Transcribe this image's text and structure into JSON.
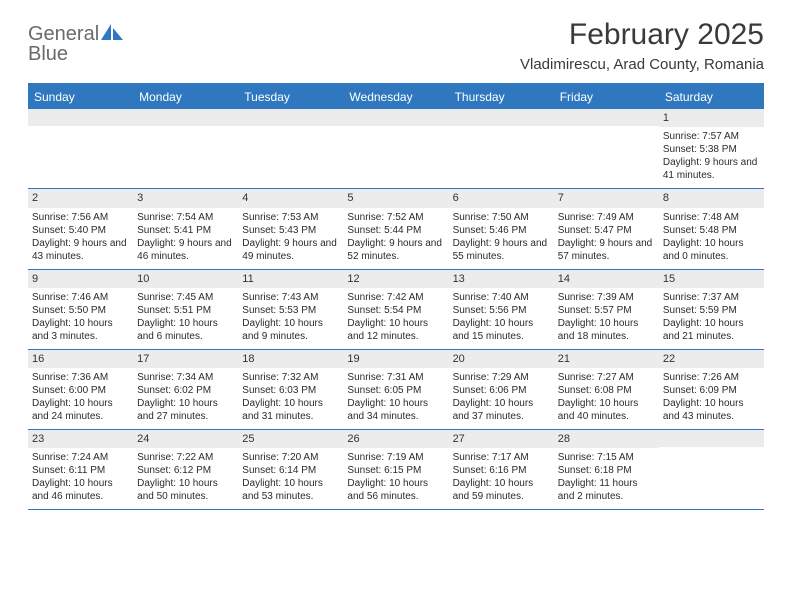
{
  "brand": {
    "line1": "General",
    "line2": "Blue"
  },
  "logo_colors": {
    "text_gray": "#6a6a6a",
    "blue": "#2f78bf"
  },
  "title": "February 2025",
  "location": "Vladimirescu, Arad County, Romania",
  "header_bg": "#2f78bf",
  "header_text_color": "#ffffff",
  "daynum_bg": "#ececec",
  "rule_color": "#2f78bf",
  "day_names": [
    "Sunday",
    "Monday",
    "Tuesday",
    "Wednesday",
    "Thursday",
    "Friday",
    "Saturday"
  ],
  "weeks": [
    [
      {
        "n": "",
        "sunrise": "",
        "sunset": "",
        "daylight": ""
      },
      {
        "n": "",
        "sunrise": "",
        "sunset": "",
        "daylight": ""
      },
      {
        "n": "",
        "sunrise": "",
        "sunset": "",
        "daylight": ""
      },
      {
        "n": "",
        "sunrise": "",
        "sunset": "",
        "daylight": ""
      },
      {
        "n": "",
        "sunrise": "",
        "sunset": "",
        "daylight": ""
      },
      {
        "n": "",
        "sunrise": "",
        "sunset": "",
        "daylight": ""
      },
      {
        "n": "1",
        "sunrise": "Sunrise: 7:57 AM",
        "sunset": "Sunset: 5:38 PM",
        "daylight": "Daylight: 9 hours and 41 minutes."
      }
    ],
    [
      {
        "n": "2",
        "sunrise": "Sunrise: 7:56 AM",
        "sunset": "Sunset: 5:40 PM",
        "daylight": "Daylight: 9 hours and 43 minutes."
      },
      {
        "n": "3",
        "sunrise": "Sunrise: 7:54 AM",
        "sunset": "Sunset: 5:41 PM",
        "daylight": "Daylight: 9 hours and 46 minutes."
      },
      {
        "n": "4",
        "sunrise": "Sunrise: 7:53 AM",
        "sunset": "Sunset: 5:43 PM",
        "daylight": "Daylight: 9 hours and 49 minutes."
      },
      {
        "n": "5",
        "sunrise": "Sunrise: 7:52 AM",
        "sunset": "Sunset: 5:44 PM",
        "daylight": "Daylight: 9 hours and 52 minutes."
      },
      {
        "n": "6",
        "sunrise": "Sunrise: 7:50 AM",
        "sunset": "Sunset: 5:46 PM",
        "daylight": "Daylight: 9 hours and 55 minutes."
      },
      {
        "n": "7",
        "sunrise": "Sunrise: 7:49 AM",
        "sunset": "Sunset: 5:47 PM",
        "daylight": "Daylight: 9 hours and 57 minutes."
      },
      {
        "n": "8",
        "sunrise": "Sunrise: 7:48 AM",
        "sunset": "Sunset: 5:48 PM",
        "daylight": "Daylight: 10 hours and 0 minutes."
      }
    ],
    [
      {
        "n": "9",
        "sunrise": "Sunrise: 7:46 AM",
        "sunset": "Sunset: 5:50 PM",
        "daylight": "Daylight: 10 hours and 3 minutes."
      },
      {
        "n": "10",
        "sunrise": "Sunrise: 7:45 AM",
        "sunset": "Sunset: 5:51 PM",
        "daylight": "Daylight: 10 hours and 6 minutes."
      },
      {
        "n": "11",
        "sunrise": "Sunrise: 7:43 AM",
        "sunset": "Sunset: 5:53 PM",
        "daylight": "Daylight: 10 hours and 9 minutes."
      },
      {
        "n": "12",
        "sunrise": "Sunrise: 7:42 AM",
        "sunset": "Sunset: 5:54 PM",
        "daylight": "Daylight: 10 hours and 12 minutes."
      },
      {
        "n": "13",
        "sunrise": "Sunrise: 7:40 AM",
        "sunset": "Sunset: 5:56 PM",
        "daylight": "Daylight: 10 hours and 15 minutes."
      },
      {
        "n": "14",
        "sunrise": "Sunrise: 7:39 AM",
        "sunset": "Sunset: 5:57 PM",
        "daylight": "Daylight: 10 hours and 18 minutes."
      },
      {
        "n": "15",
        "sunrise": "Sunrise: 7:37 AM",
        "sunset": "Sunset: 5:59 PM",
        "daylight": "Daylight: 10 hours and 21 minutes."
      }
    ],
    [
      {
        "n": "16",
        "sunrise": "Sunrise: 7:36 AM",
        "sunset": "Sunset: 6:00 PM",
        "daylight": "Daylight: 10 hours and 24 minutes."
      },
      {
        "n": "17",
        "sunrise": "Sunrise: 7:34 AM",
        "sunset": "Sunset: 6:02 PM",
        "daylight": "Daylight: 10 hours and 27 minutes."
      },
      {
        "n": "18",
        "sunrise": "Sunrise: 7:32 AM",
        "sunset": "Sunset: 6:03 PM",
        "daylight": "Daylight: 10 hours and 31 minutes."
      },
      {
        "n": "19",
        "sunrise": "Sunrise: 7:31 AM",
        "sunset": "Sunset: 6:05 PM",
        "daylight": "Daylight: 10 hours and 34 minutes."
      },
      {
        "n": "20",
        "sunrise": "Sunrise: 7:29 AM",
        "sunset": "Sunset: 6:06 PM",
        "daylight": "Daylight: 10 hours and 37 minutes."
      },
      {
        "n": "21",
        "sunrise": "Sunrise: 7:27 AM",
        "sunset": "Sunset: 6:08 PM",
        "daylight": "Daylight: 10 hours and 40 minutes."
      },
      {
        "n": "22",
        "sunrise": "Sunrise: 7:26 AM",
        "sunset": "Sunset: 6:09 PM",
        "daylight": "Daylight: 10 hours and 43 minutes."
      }
    ],
    [
      {
        "n": "23",
        "sunrise": "Sunrise: 7:24 AM",
        "sunset": "Sunset: 6:11 PM",
        "daylight": "Daylight: 10 hours and 46 minutes."
      },
      {
        "n": "24",
        "sunrise": "Sunrise: 7:22 AM",
        "sunset": "Sunset: 6:12 PM",
        "daylight": "Daylight: 10 hours and 50 minutes."
      },
      {
        "n": "25",
        "sunrise": "Sunrise: 7:20 AM",
        "sunset": "Sunset: 6:14 PM",
        "daylight": "Daylight: 10 hours and 53 minutes."
      },
      {
        "n": "26",
        "sunrise": "Sunrise: 7:19 AM",
        "sunset": "Sunset: 6:15 PM",
        "daylight": "Daylight: 10 hours and 56 minutes."
      },
      {
        "n": "27",
        "sunrise": "Sunrise: 7:17 AM",
        "sunset": "Sunset: 6:16 PM",
        "daylight": "Daylight: 10 hours and 59 minutes."
      },
      {
        "n": "28",
        "sunrise": "Sunrise: 7:15 AM",
        "sunset": "Sunset: 6:18 PM",
        "daylight": "Daylight: 11 hours and 2 minutes."
      },
      {
        "n": "",
        "sunrise": "",
        "sunset": "",
        "daylight": ""
      }
    ]
  ]
}
